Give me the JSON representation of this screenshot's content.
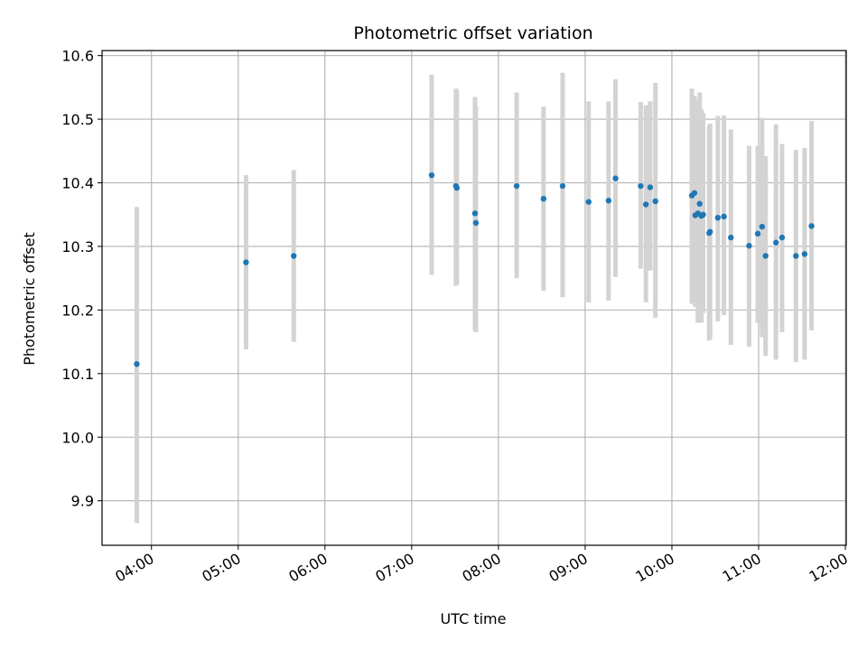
{
  "chart_data": {
    "type": "scatter",
    "title": "Photometric offset variation",
    "xlabel": "UTC time",
    "ylabel": "Photometric offset",
    "x_unit": "UTC hour",
    "xlim": [
      3.43,
      12.01
    ],
    "ylim": [
      9.83,
      10.608
    ],
    "grid": true,
    "x_ticks": [
      4,
      5,
      6,
      7,
      8,
      9,
      10,
      11,
      12
    ],
    "x_tick_labels": [
      "04:00",
      "05:00",
      "06:00",
      "07:00",
      "08:00",
      "09:00",
      "10:00",
      "11:00",
      "12:00"
    ],
    "y_ticks": [
      9.9,
      10.0,
      10.1,
      10.2,
      10.3,
      10.4,
      10.5,
      10.6
    ],
    "y_tick_labels": [
      "9.9",
      "10.0",
      "10.1",
      "10.2",
      "10.3",
      "10.4",
      "10.5",
      "10.6"
    ],
    "colors": {
      "point": "#1f77b4",
      "errorbar": "#d3d3d3",
      "grid": "#b0b0b0"
    },
    "series": [
      {
        "x": [
          3.83,
          5.09,
          5.64,
          7.23,
          7.51,
          7.52,
          7.73,
          7.74,
          8.21,
          8.52,
          8.74,
          9.04,
          9.27,
          9.35,
          9.64,
          9.7,
          9.75,
          9.81,
          10.23,
          10.26,
          10.27,
          10.3,
          10.32,
          10.34,
          10.36,
          10.43,
          10.44,
          10.53,
          10.6,
          10.68,
          10.89,
          10.99,
          11.04,
          11.08,
          11.2,
          11.27,
          11.43,
          11.53,
          11.61
        ],
        "y": [
          10.115,
          10.275,
          10.285,
          10.412,
          10.395,
          10.392,
          10.352,
          10.337,
          10.395,
          10.375,
          10.395,
          10.37,
          10.372,
          10.407,
          10.395,
          10.366,
          10.393,
          10.371,
          10.38,
          10.384,
          10.349,
          10.352,
          10.367,
          10.348,
          10.35,
          10.321,
          10.323,
          10.345,
          10.347,
          10.314,
          10.301,
          10.32,
          10.331,
          10.285,
          10.306,
          10.314,
          10.285,
          10.288,
          10.332
        ],
        "ylow": [
          9.865,
          10.138,
          10.15,
          10.255,
          10.238,
          10.24,
          10.168,
          10.165,
          10.25,
          10.23,
          10.22,
          10.212,
          10.215,
          10.252,
          10.265,
          10.212,
          10.262,
          10.188,
          10.21,
          10.208,
          10.205,
          10.18,
          10.18,
          10.18,
          10.195,
          10.152,
          10.155,
          10.182,
          10.192,
          10.145,
          10.142,
          10.18,
          10.157,
          10.128,
          10.122,
          10.165,
          10.118,
          10.122,
          10.168
        ],
        "yhigh": [
          10.362,
          10.412,
          10.42,
          10.57,
          10.548,
          10.545,
          10.535,
          10.52,
          10.542,
          10.52,
          10.573,
          10.528,
          10.528,
          10.563,
          10.527,
          10.522,
          10.528,
          10.557,
          10.548,
          10.537,
          10.53,
          10.528,
          10.542,
          10.516,
          10.51,
          10.49,
          10.493,
          10.505,
          10.506,
          10.484,
          10.458,
          10.458,
          10.502,
          10.442,
          10.492,
          10.461,
          10.452,
          10.455,
          10.497
        ]
      }
    ]
  }
}
